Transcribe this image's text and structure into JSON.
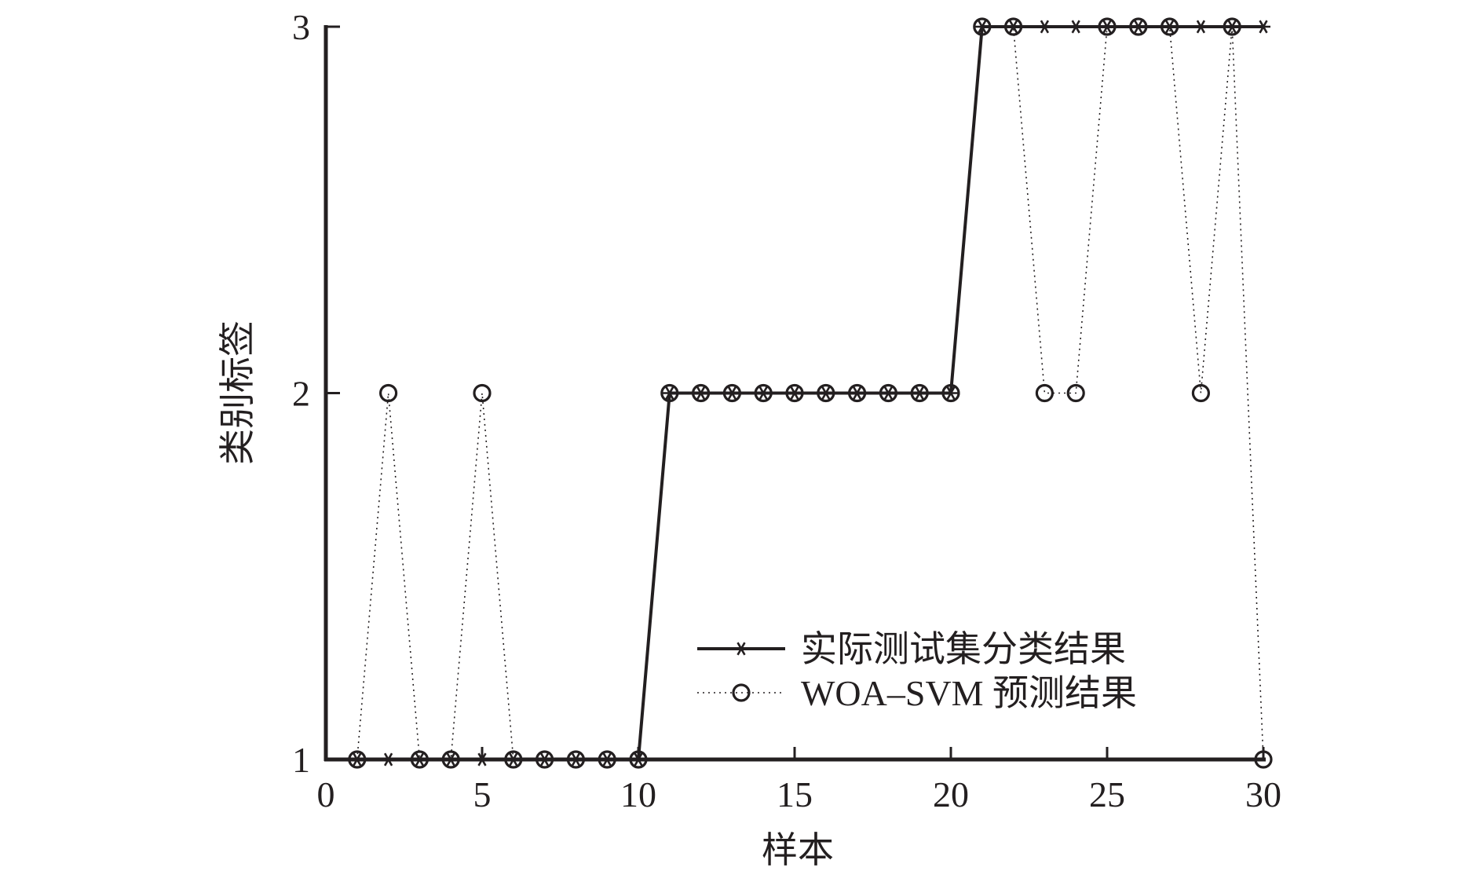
{
  "chart_data": {
    "type": "line",
    "title": "",
    "xlabel": "样本",
    "ylabel": "类别标签",
    "xlim": [
      0,
      30
    ],
    "ylim": [
      1,
      3
    ],
    "xticks": [
      "0",
      "5",
      "10",
      "15",
      "20",
      "25",
      "30"
    ],
    "yticks": [
      "1",
      "2",
      "3"
    ],
    "grid": false,
    "legend_position": "lower-right",
    "x": [
      1,
      2,
      3,
      4,
      5,
      6,
      7,
      8,
      9,
      10,
      11,
      12,
      13,
      14,
      15,
      16,
      17,
      18,
      19,
      20,
      21,
      22,
      23,
      24,
      25,
      26,
      27,
      28,
      29,
      30
    ],
    "series": [
      {
        "name": "实际测试集分类结果",
        "marker": "asterisk",
        "line": "solid",
        "values": [
          1,
          1,
          1,
          1,
          1,
          1,
          1,
          1,
          1,
          1,
          2,
          2,
          2,
          2,
          2,
          2,
          2,
          2,
          2,
          2,
          3,
          3,
          3,
          3,
          3,
          3,
          3,
          3,
          3,
          3
        ]
      },
      {
        "name": "WOA–SVM 预测结果",
        "marker": "circle",
        "line": "dotted",
        "values": [
          1,
          2,
          1,
          1,
          2,
          1,
          1,
          1,
          1,
          1,
          2,
          2,
          2,
          2,
          2,
          2,
          2,
          2,
          2,
          2,
          3,
          3,
          2,
          2,
          3,
          3,
          3,
          2,
          3,
          1
        ]
      }
    ],
    "colors": {
      "ink": "#231f20",
      "background": "#ffffff"
    }
  }
}
